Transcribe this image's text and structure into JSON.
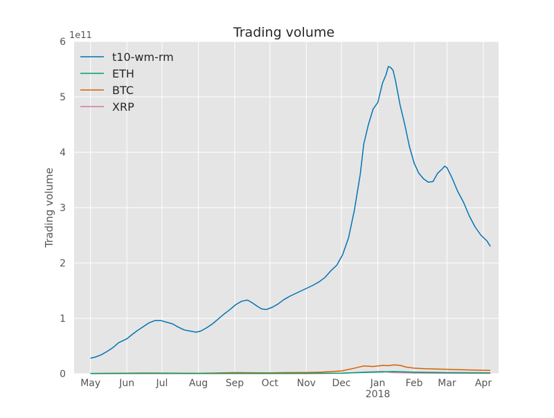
{
  "chart_data": {
    "type": "line",
    "title": "Trading volume",
    "xlabel": "",
    "ylabel": "Trading volume",
    "y_offset_label": "1e11",
    "y_scale_factor": 100000000000,
    "ylim": [
      0,
      6
    ],
    "xlim": [
      "2017-04-17",
      "2018-04-14"
    ],
    "x_ticks": [
      {
        "date": "2017-05-01",
        "label": "May"
      },
      {
        "date": "2017-06-01",
        "label": "Jun"
      },
      {
        "date": "2017-07-01",
        "label": "Jul"
      },
      {
        "date": "2017-08-01",
        "label": "Aug"
      },
      {
        "date": "2017-09-01",
        "label": "Sep"
      },
      {
        "date": "2017-10-01",
        "label": "Oct"
      },
      {
        "date": "2017-11-01",
        "label": "Nov"
      },
      {
        "date": "2017-12-01",
        "label": "Dec"
      },
      {
        "date": "2018-01-01",
        "label": "Jan",
        "sublabel": "2018"
      },
      {
        "date": "2018-02-01",
        "label": "Feb"
      },
      {
        "date": "2018-03-01",
        "label": "Mar"
      },
      {
        "date": "2018-04-01",
        "label": "Apr"
      }
    ],
    "y_ticks": [
      "0",
      "1",
      "2",
      "3",
      "4",
      "5",
      "6"
    ],
    "grid": true,
    "legend_position": "top-left",
    "background_color": "#e5e5e5",
    "series": [
      {
        "name": "t10-wm-rm",
        "color": "#0072b2",
        "points": [
          [
            "2017-05-01",
            0.28
          ],
          [
            "2017-05-05",
            0.3
          ],
          [
            "2017-05-10",
            0.34
          ],
          [
            "2017-05-15",
            0.4
          ],
          [
            "2017-05-20",
            0.47
          ],
          [
            "2017-05-25",
            0.56
          ],
          [
            "2017-06-01",
            0.63
          ],
          [
            "2017-06-05",
            0.7
          ],
          [
            "2017-06-10",
            0.78
          ],
          [
            "2017-06-15",
            0.85
          ],
          [
            "2017-06-20",
            0.92
          ],
          [
            "2017-06-25",
            0.96
          ],
          [
            "2017-06-30",
            0.96
          ],
          [
            "2017-07-05",
            0.93
          ],
          [
            "2017-07-10",
            0.9
          ],
          [
            "2017-07-15",
            0.84
          ],
          [
            "2017-07-20",
            0.79
          ],
          [
            "2017-07-25",
            0.77
          ],
          [
            "2017-07-30",
            0.75
          ],
          [
            "2017-08-03",
            0.77
          ],
          [
            "2017-08-08",
            0.83
          ],
          [
            "2017-08-13",
            0.9
          ],
          [
            "2017-08-18",
            0.99
          ],
          [
            "2017-08-23",
            1.08
          ],
          [
            "2017-08-28",
            1.16
          ],
          [
            "2017-09-02",
            1.25
          ],
          [
            "2017-09-07",
            1.31
          ],
          [
            "2017-09-12",
            1.33
          ],
          [
            "2017-09-16",
            1.28
          ],
          [
            "2017-09-20",
            1.22
          ],
          [
            "2017-09-24",
            1.17
          ],
          [
            "2017-09-28",
            1.16
          ],
          [
            "2017-10-03",
            1.2
          ],
          [
            "2017-10-08",
            1.26
          ],
          [
            "2017-10-13",
            1.34
          ],
          [
            "2017-10-18",
            1.4
          ],
          [
            "2017-10-23",
            1.45
          ],
          [
            "2017-10-28",
            1.5
          ],
          [
            "2017-11-02",
            1.55
          ],
          [
            "2017-11-07",
            1.6
          ],
          [
            "2017-11-12",
            1.66
          ],
          [
            "2017-11-17",
            1.74
          ],
          [
            "2017-11-22",
            1.86
          ],
          [
            "2017-11-27",
            1.96
          ],
          [
            "2017-12-02",
            2.15
          ],
          [
            "2017-12-07",
            2.45
          ],
          [
            "2017-12-12",
            2.95
          ],
          [
            "2017-12-17",
            3.6
          ],
          [
            "2017-12-20",
            4.15
          ],
          [
            "2017-12-24",
            4.5
          ],
          [
            "2017-12-28",
            4.78
          ],
          [
            "2018-01-01",
            4.9
          ],
          [
            "2018-01-05",
            5.25
          ],
          [
            "2018-01-08",
            5.4
          ],
          [
            "2018-01-10",
            5.55
          ],
          [
            "2018-01-12",
            5.53
          ],
          [
            "2018-01-14",
            5.48
          ],
          [
            "2018-01-16",
            5.3
          ],
          [
            "2018-01-20",
            4.85
          ],
          [
            "2018-01-24",
            4.5
          ],
          [
            "2018-01-28",
            4.1
          ],
          [
            "2018-02-01",
            3.8
          ],
          [
            "2018-02-05",
            3.62
          ],
          [
            "2018-02-09",
            3.52
          ],
          [
            "2018-02-13",
            3.46
          ],
          [
            "2018-02-17",
            3.47
          ],
          [
            "2018-02-21",
            3.62
          ],
          [
            "2018-02-25",
            3.7
          ],
          [
            "2018-02-27",
            3.75
          ],
          [
            "2018-03-01",
            3.72
          ],
          [
            "2018-03-05",
            3.55
          ],
          [
            "2018-03-10",
            3.3
          ],
          [
            "2018-03-15",
            3.1
          ],
          [
            "2018-03-20",
            2.85
          ],
          [
            "2018-03-25",
            2.65
          ],
          [
            "2018-03-30",
            2.5
          ],
          [
            "2018-04-04",
            2.4
          ],
          [
            "2018-04-07",
            2.3
          ]
        ]
      },
      {
        "name": "ETH",
        "color": "#009e73",
        "points": [
          [
            "2017-05-01",
            0.002
          ],
          [
            "2017-06-01",
            0.005
          ],
          [
            "2017-07-01",
            0.006
          ],
          [
            "2017-08-01",
            0.004
          ],
          [
            "2017-09-01",
            0.006
          ],
          [
            "2017-10-01",
            0.005
          ],
          [
            "2017-11-01",
            0.006
          ],
          [
            "2017-12-01",
            0.01
          ],
          [
            "2018-01-01",
            0.03
          ],
          [
            "2018-01-15",
            0.04
          ],
          [
            "2018-02-01",
            0.028
          ],
          [
            "2018-03-01",
            0.02
          ],
          [
            "2018-04-07",
            0.015
          ]
        ]
      },
      {
        "name": "BTC",
        "color": "#d55e00",
        "points": [
          [
            "2017-05-01",
            0.005
          ],
          [
            "2017-05-15",
            0.008
          ],
          [
            "2017-06-01",
            0.01
          ],
          [
            "2017-06-15",
            0.012
          ],
          [
            "2017-07-01",
            0.011
          ],
          [
            "2017-07-15",
            0.01
          ],
          [
            "2017-08-01",
            0.008
          ],
          [
            "2017-08-15",
            0.012
          ],
          [
            "2017-09-01",
            0.02
          ],
          [
            "2017-09-15",
            0.018
          ],
          [
            "2017-10-01",
            0.015
          ],
          [
            "2017-10-15",
            0.02
          ],
          [
            "2017-11-01",
            0.022
          ],
          [
            "2017-11-15",
            0.03
          ],
          [
            "2017-12-01",
            0.05
          ],
          [
            "2017-12-10",
            0.09
          ],
          [
            "2017-12-20",
            0.14
          ],
          [
            "2017-12-28",
            0.13
          ],
          [
            "2018-01-05",
            0.15
          ],
          [
            "2018-01-10",
            0.145
          ],
          [
            "2018-01-15",
            0.16
          ],
          [
            "2018-01-20",
            0.15
          ],
          [
            "2018-01-25",
            0.12
          ],
          [
            "2018-02-01",
            0.1
          ],
          [
            "2018-02-10",
            0.09
          ],
          [
            "2018-02-20",
            0.085
          ],
          [
            "2018-03-01",
            0.08
          ],
          [
            "2018-03-15",
            0.07
          ],
          [
            "2018-04-07",
            0.06
          ]
        ]
      },
      {
        "name": "XRP",
        "color": "#cc79a7",
        "points": [
          [
            "2017-05-01",
            0.001
          ],
          [
            "2017-06-01",
            0.002
          ],
          [
            "2017-07-01",
            0.002
          ],
          [
            "2017-08-01",
            0.002
          ],
          [
            "2017-09-01",
            0.003
          ],
          [
            "2017-10-01",
            0.002
          ],
          [
            "2017-11-01",
            0.003
          ],
          [
            "2017-12-01",
            0.008
          ],
          [
            "2017-12-20",
            0.03
          ],
          [
            "2018-01-05",
            0.04
          ],
          [
            "2018-01-15",
            0.02
          ],
          [
            "2018-02-01",
            0.012
          ],
          [
            "2018-03-01",
            0.008
          ],
          [
            "2018-04-07",
            0.006
          ]
        ]
      }
    ]
  }
}
